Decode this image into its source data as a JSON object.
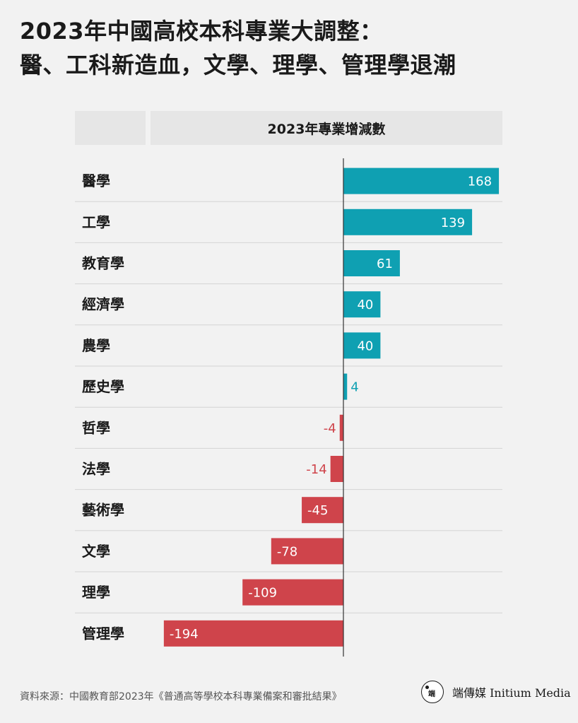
{
  "title_line1": "2023年中國高校本科專業大調整：",
  "title_line2": "醫、工科新造血，文學、理學、管理學退潮",
  "header_label": "2023年專業增減數",
  "source": "資料來源：中國教育部2023年《普通高等學校本科專業備案和審批結果》",
  "brand": {
    "logo_glyph": "端",
    "name": "端傳媒 Initium Media"
  },
  "colors": {
    "positive": "#0fa0b2",
    "negative": "#cf444b"
  },
  "chart_data": {
    "type": "bar",
    "orientation": "horizontal",
    "title": "2023年專業增減數",
    "categories": [
      "醫學",
      "工學",
      "教育學",
      "經濟學",
      "農學",
      "歷史學",
      "哲學",
      "法學",
      "藝術學",
      "文學",
      "理學",
      "管理學"
    ],
    "values": [
      168,
      139,
      61,
      40,
      40,
      4,
      -4,
      -14,
      -45,
      -78,
      -109,
      -194
    ],
    "value_labels": [
      "168",
      "139",
      "61",
      "40",
      "40",
      "4",
      "-4",
      "-14",
      "-45",
      "-78",
      "-109",
      "-194"
    ]
  }
}
